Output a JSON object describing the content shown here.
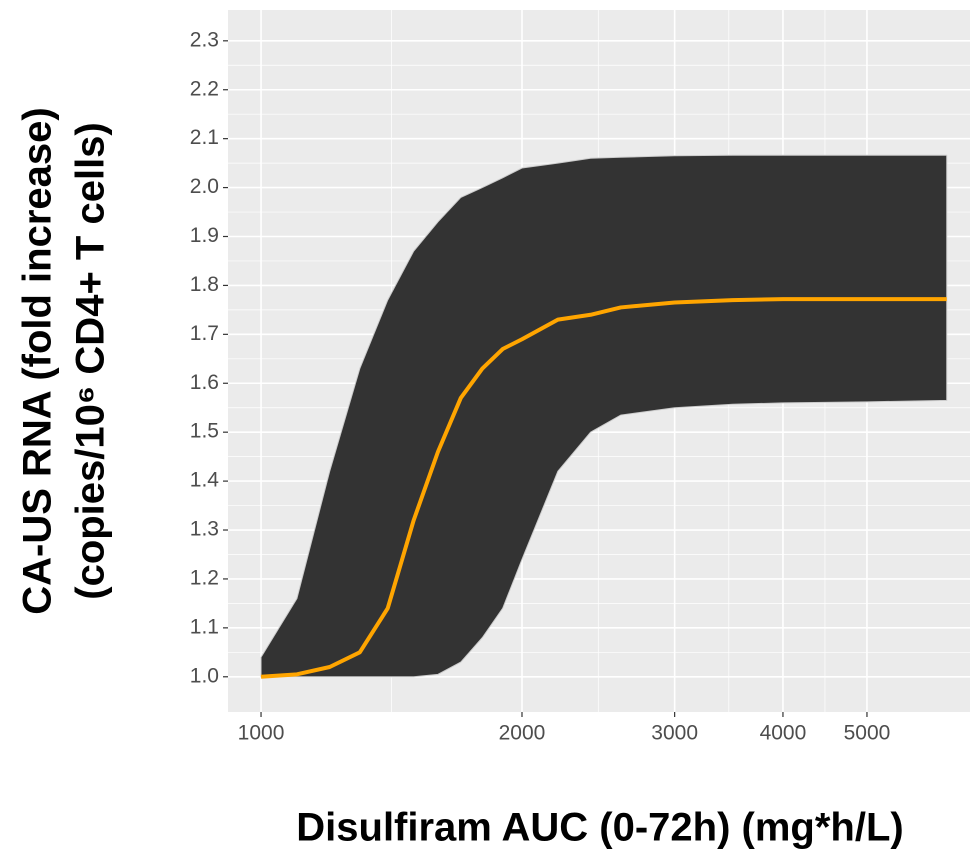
{
  "chart_data": {
    "type": "ribbon-line",
    "x_label": "Disulfiram AUC (0-72h) (mg*h/L)",
    "y_label": [
      "CA-US RNA (fold increase)",
      "(copies/10⁶ CD4+ T cells)"
    ],
    "x": [
      1000,
      1100,
      1200,
      1300,
      1400,
      1500,
      1600,
      1700,
      1800,
      1900,
      2000,
      2200,
      2400,
      2600,
      3000,
      3500,
      4000,
      5000,
      6180
    ],
    "lower": [
      1.0,
      1.0,
      1.0,
      1.0,
      1.0,
      1.0,
      1.005,
      1.03,
      1.08,
      1.14,
      1.24,
      1.42,
      1.5,
      1.535,
      1.55,
      1.557,
      1.56,
      1.562,
      1.565
    ],
    "values": [
      1.0,
      1.005,
      1.02,
      1.05,
      1.14,
      1.32,
      1.46,
      1.57,
      1.63,
      1.67,
      1.69,
      1.73,
      1.74,
      1.755,
      1.765,
      1.77,
      1.772,
      1.772,
      1.772
    ],
    "upper": [
      1.04,
      1.16,
      1.42,
      1.63,
      1.77,
      1.87,
      1.93,
      1.98,
      2.0,
      2.02,
      2.04,
      2.05,
      2.06,
      2.062,
      2.065,
      2.066,
      2.066,
      2.066,
      2.066
    ],
    "band_color": "#333333",
    "line_color": "#ffa500",
    "x_log": true,
    "xlim": [
      916,
      6574
    ],
    "xticks": [
      1000,
      2000,
      3000,
      4000,
      5000
    ],
    "ylim": [
      0.928,
      2.363
    ],
    "yticks": [
      {
        "value": 1,
        "label": "1.0"
      },
      1.1,
      1.2,
      1.3,
      1.4,
      1.5,
      1.6,
      1.7,
      1.8,
      1.9,
      {
        "value": 2,
        "label": "2.0"
      },
      2.1,
      2.2,
      2.3
    ],
    "grid": true
  }
}
